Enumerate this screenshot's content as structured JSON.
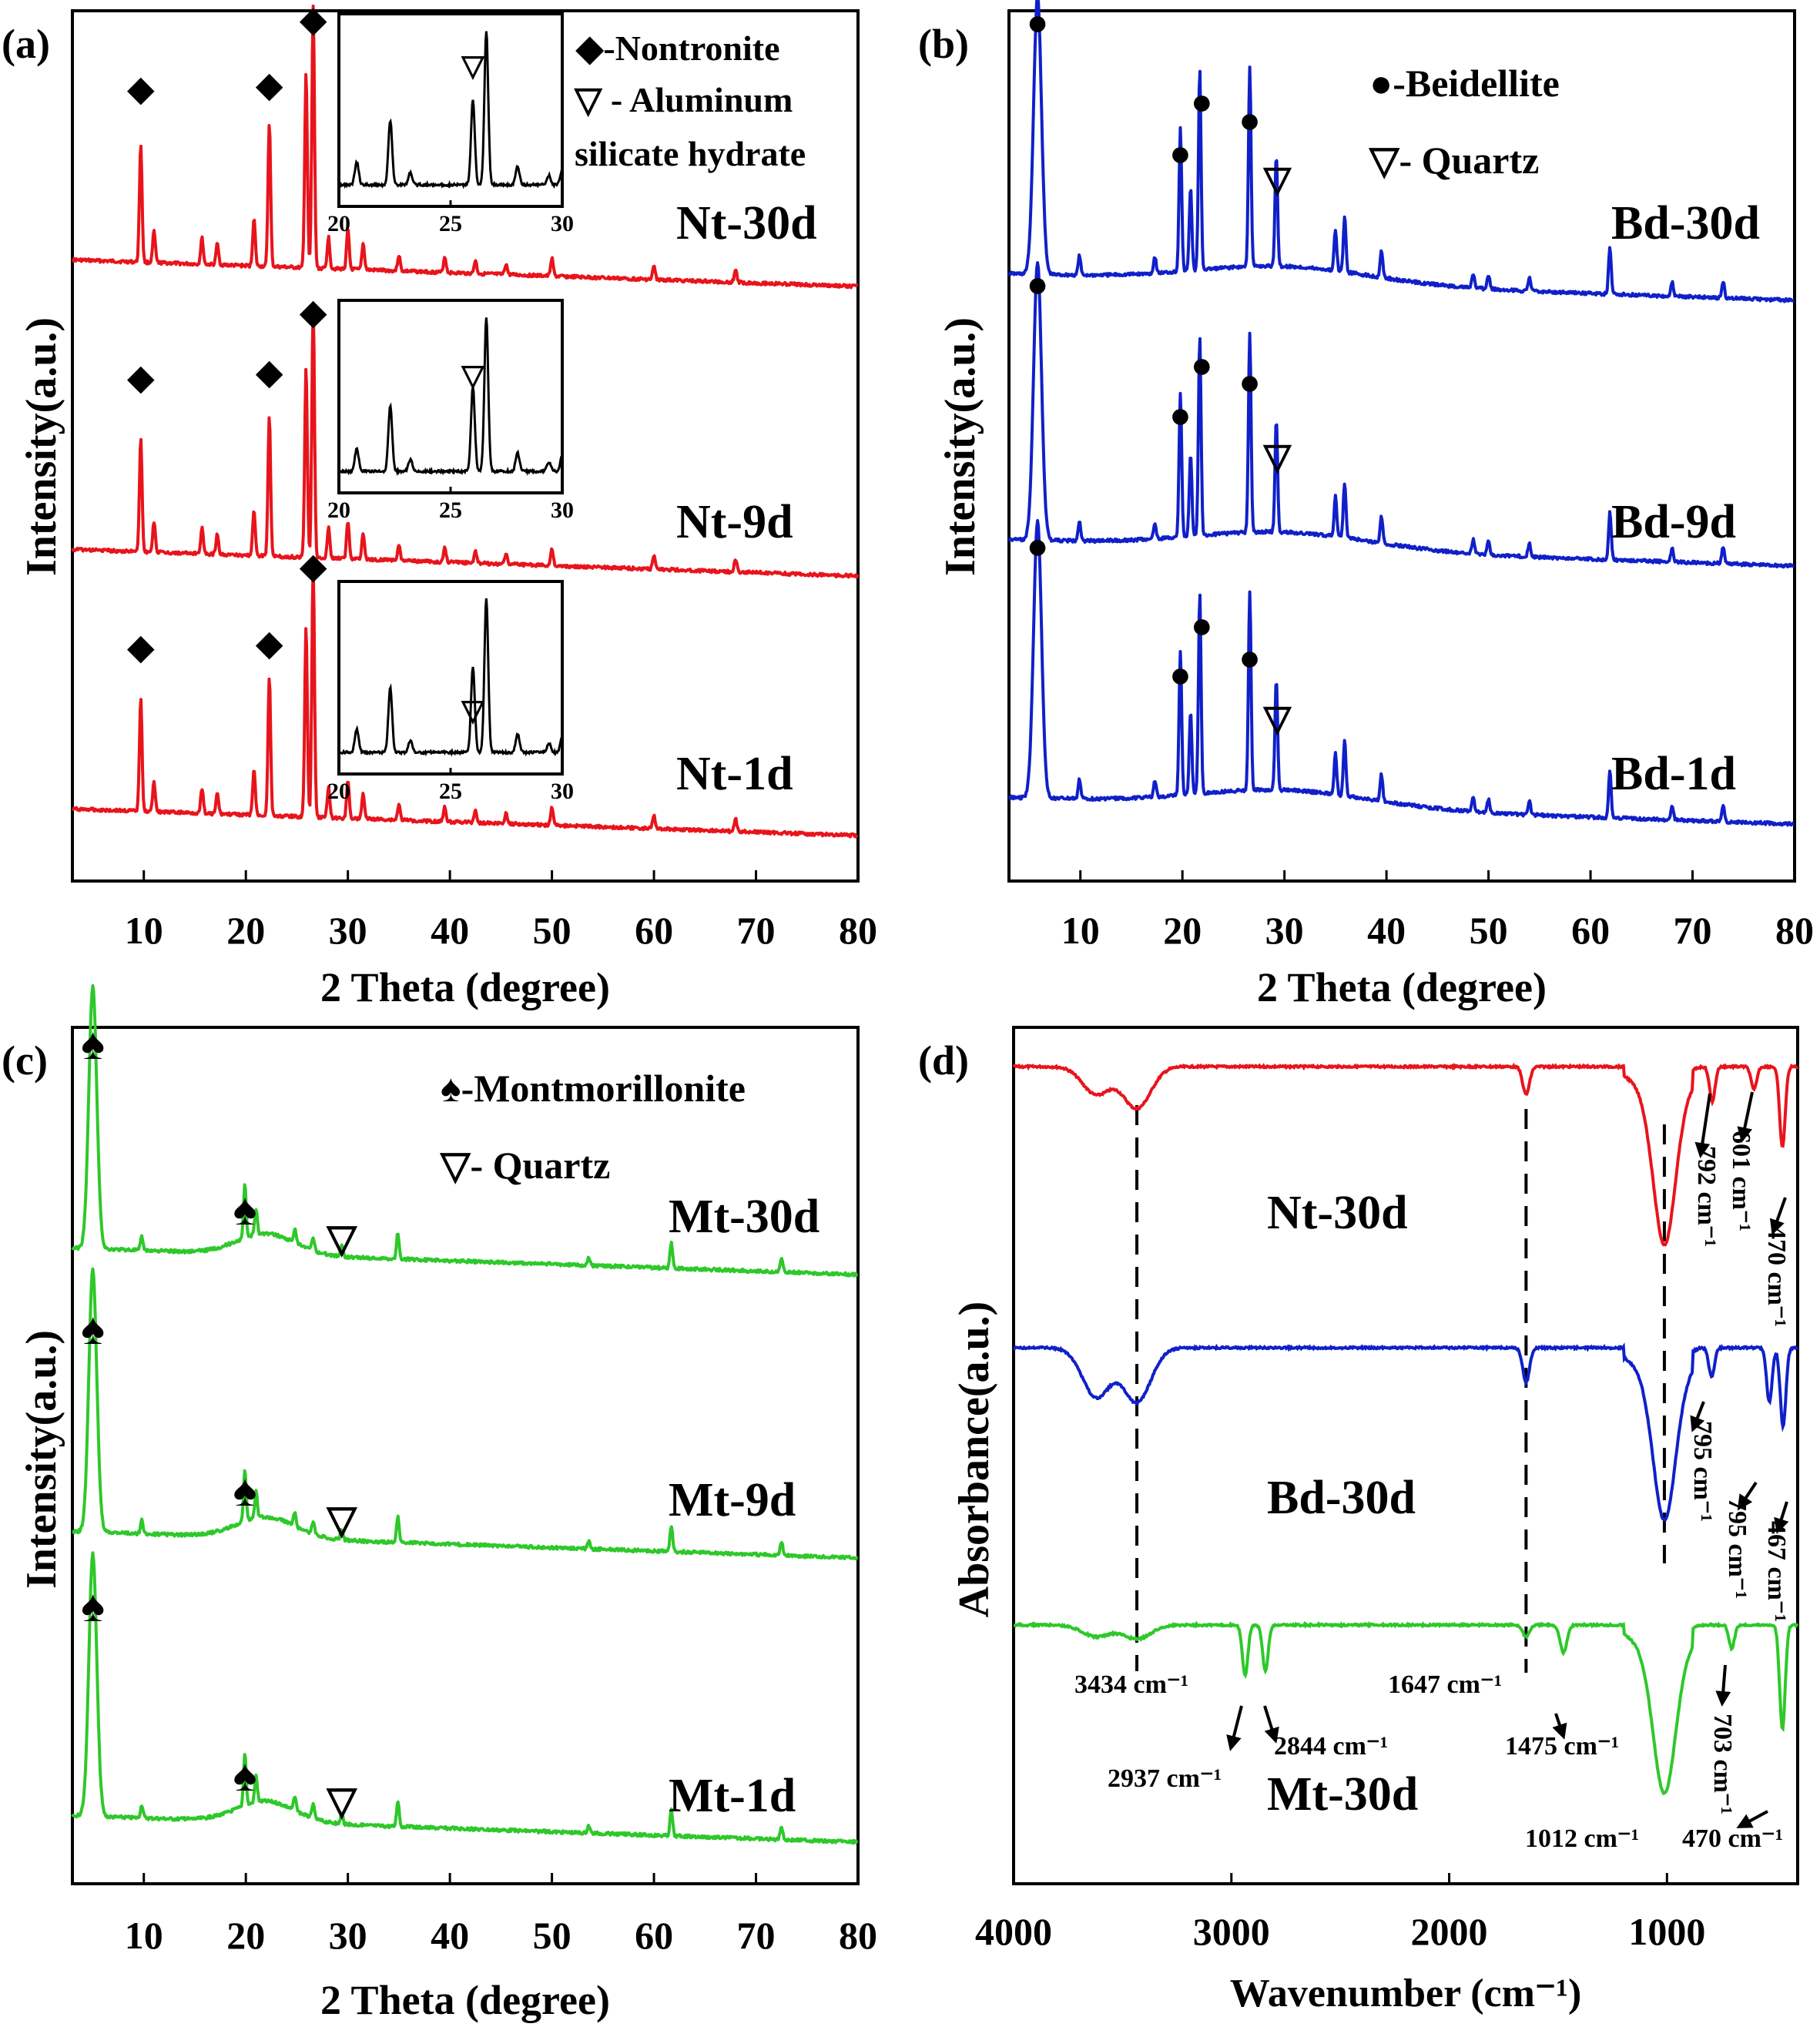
{
  "colors": {
    "nt": "#e8141c",
    "bd": "#1020c8",
    "mt": "#2ec82a",
    "inset": "#000000",
    "text": "#000000"
  },
  "panels": {
    "a": {
      "label": "(a)",
      "xlabel": "2 Theta (degree)",
      "ylabel": "Intensity(a.u.)",
      "xticks": [
        "10",
        "20",
        "30",
        "40",
        "50",
        "60",
        "70",
        "80"
      ],
      "legend": [
        "◆-Nontronite",
        "▽ - Aluminum",
        "silicate hydrate"
      ],
      "curves": [
        {
          "label": "Nt-30d"
        },
        {
          "label": "Nt-9d"
        },
        {
          "label": "Nt-1d"
        }
      ],
      "inset_ticks": [
        "20",
        "25",
        "30"
      ],
      "marker": "◆",
      "minor_marker": "▽"
    },
    "b": {
      "label": "(b)",
      "xlabel": "2 Theta (degree)",
      "ylabel": "Intensity(a.u.)",
      "xticks": [
        "10",
        "20",
        "30",
        "40",
        "50",
        "60",
        "70",
        "80"
      ],
      "legend": [
        "●-Beidellite",
        "▽- Quartz"
      ],
      "curves": [
        {
          "label": "Bd-30d"
        },
        {
          "label": "Bd-9d"
        },
        {
          "label": "Bd-1d"
        }
      ],
      "marker": "●",
      "minor_marker": "▽"
    },
    "c": {
      "label": "(c)",
      "xlabel": "2 Theta (degree)",
      "ylabel": "Intensity(a.u.)",
      "xticks": [
        "10",
        "20",
        "30",
        "40",
        "50",
        "60",
        "70",
        "80"
      ],
      "legend": [
        "♠-Montmorillonite",
        "▽- Quartz"
      ],
      "curves": [
        {
          "label": "Mt-30d"
        },
        {
          "label": "Mt-9d"
        },
        {
          "label": "Mt-1d"
        }
      ],
      "marker": "♠",
      "minor_marker": "▽"
    },
    "d": {
      "label": "(d)",
      "xlabel": "Wavenumber (cm⁻¹)",
      "ylabel": "Absorbance(a.u.)",
      "xticks": [
        "4000",
        "3000",
        "2000",
        "1000"
      ],
      "curves": [
        {
          "label": "Nt-30d"
        },
        {
          "label": "Bd-30d"
        },
        {
          "label": "Mt-30d"
        }
      ],
      "annotations": {
        "a3434": "3434 cm⁻¹",
        "a1647": "1647 cm⁻¹",
        "a2937": "2937 cm⁻¹",
        "a2844": "2844 cm⁻¹",
        "a1475": "1475 cm⁻¹",
        "a1012": "1012 cm⁻¹",
        "a470mt": "470 cm⁻¹",
        "a703": "703 cm⁻¹",
        "a792": "792 cm⁻¹",
        "a601": "601 cm⁻¹",
        "a470nt": "470 cm⁻¹",
        "a795a": "795 cm⁻¹",
        "a795b": "795 cm⁻¹",
        "a467": "467 cm⁻¹"
      }
    }
  },
  "chart_data": [
    {
      "type": "line",
      "panel": "a",
      "xlim": [
        3,
        80
      ],
      "xlabel": "2 Theta (degree)",
      "ylabel": "Intensity(a.u.)",
      "series": [
        {
          "name": "Nt-30d",
          "peaks": [
            [
              9.7,
              0.45
            ],
            [
              11,
              0.12
            ],
            [
              15.7,
              0.1
            ],
            [
              17.2,
              0.08
            ],
            [
              20.8,
              0.18
            ],
            [
              22.3,
              0.55
            ],
            [
              25.9,
              0.75
            ],
            [
              26.6,
              1.0
            ],
            [
              28.1,
              0.12
            ],
            [
              30,
              0.15
            ],
            [
              31.5,
              0.1
            ],
            [
              35,
              0.06
            ],
            [
              39.5,
              0.06
            ],
            [
              42.5,
              0.05
            ],
            [
              45.5,
              0.04
            ],
            [
              50,
              0.07
            ],
            [
              60,
              0.05
            ],
            [
              68,
              0.05
            ]
          ]
        },
        {
          "name": "Nt-9d",
          "peaks": [
            [
              9.7,
              0.45
            ],
            [
              11,
              0.12
            ],
            [
              15.7,
              0.1
            ],
            [
              17.2,
              0.08
            ],
            [
              20.8,
              0.18
            ],
            [
              22.3,
              0.55
            ],
            [
              25.9,
              0.75
            ],
            [
              26.6,
              1.0
            ],
            [
              28.1,
              0.12
            ],
            [
              30,
              0.15
            ],
            [
              31.5,
              0.1
            ],
            [
              35,
              0.06
            ],
            [
              39.5,
              0.06
            ],
            [
              42.5,
              0.05
            ],
            [
              45.5,
              0.04
            ],
            [
              50,
              0.07
            ],
            [
              60,
              0.05
            ],
            [
              68,
              0.05
            ]
          ]
        },
        {
          "name": "Nt-1d",
          "peaks": [
            [
              9.7,
              0.45
            ],
            [
              11,
              0.12
            ],
            [
              15.7,
              0.1
            ],
            [
              17.2,
              0.08
            ],
            [
              20.8,
              0.18
            ],
            [
              22.3,
              0.55
            ],
            [
              25.9,
              0.75
            ],
            [
              26.6,
              1.0
            ],
            [
              28.1,
              0.12
            ],
            [
              30,
              0.15
            ],
            [
              31.5,
              0.1
            ],
            [
              35,
              0.06
            ],
            [
              39.5,
              0.06
            ],
            [
              42.5,
              0.05
            ],
            [
              45.5,
              0.04
            ],
            [
              50,
              0.07
            ],
            [
              60,
              0.05
            ],
            [
              68,
              0.05
            ]
          ]
        }
      ]
    },
    {
      "type": "line",
      "panel": "b",
      "xlim": [
        3,
        80
      ],
      "xlabel": "2 Theta (degree)",
      "ylabel": "Intensity(a.u.)",
      "series": [
        {
          "name": "Bd-30d",
          "peaks": [
            [
              5.8,
              1.0
            ],
            [
              9.9,
              0.07
            ],
            [
              17.3,
              0.06
            ],
            [
              19.8,
              0.52
            ],
            [
              20.8,
              0.3
            ],
            [
              21.7,
              0.72
            ],
            [
              26.6,
              0.72
            ],
            [
              29.2,
              0.4
            ],
            [
              35,
              0.15
            ],
            [
              35.9,
              0.2
            ],
            [
              39.5,
              0.1
            ],
            [
              48.5,
              0.05
            ],
            [
              50,
              0.05
            ],
            [
              54,
              0.05
            ],
            [
              61.9,
              0.17
            ],
            [
              68,
              0.05
            ],
            [
              73,
              0.06
            ]
          ]
        },
        {
          "name": "Bd-9d",
          "peaks": [
            [
              5.8,
              1.0
            ],
            [
              9.9,
              0.07
            ],
            [
              17.3,
              0.06
            ],
            [
              19.8,
              0.52
            ],
            [
              20.8,
              0.3
            ],
            [
              21.7,
              0.72
            ],
            [
              26.6,
              0.72
            ],
            [
              29.2,
              0.4
            ],
            [
              35,
              0.15
            ],
            [
              35.9,
              0.2
            ],
            [
              39.5,
              0.1
            ],
            [
              48.5,
              0.05
            ],
            [
              50,
              0.05
            ],
            [
              54,
              0.05
            ],
            [
              61.9,
              0.17
            ],
            [
              68,
              0.05
            ],
            [
              73,
              0.06
            ]
          ]
        },
        {
          "name": "Bd-1d",
          "peaks": [
            [
              5.8,
              1.0
            ],
            [
              9.9,
              0.07
            ],
            [
              17.3,
              0.06
            ],
            [
              19.8,
              0.52
            ],
            [
              20.8,
              0.3
            ],
            [
              21.7,
              0.72
            ],
            [
              26.6,
              0.72
            ],
            [
              29.2,
              0.4
            ],
            [
              35,
              0.15
            ],
            [
              35.9,
              0.2
            ],
            [
              39.5,
              0.1
            ],
            [
              48.5,
              0.05
            ],
            [
              50,
              0.05
            ],
            [
              54,
              0.05
            ],
            [
              61.9,
              0.17
            ],
            [
              68,
              0.05
            ],
            [
              73,
              0.06
            ]
          ]
        }
      ]
    },
    {
      "type": "line",
      "panel": "c",
      "xlim": [
        3,
        80
      ],
      "xlabel": "2 Theta (degree)",
      "ylabel": "Intensity(a.u.)",
      "series": [
        {
          "name": "Mt-30d",
          "peaks": [
            [
              5,
              1.0
            ],
            [
              9.8,
              0.05
            ],
            [
              19.9,
              0.2
            ],
            [
              21,
              0.1
            ],
            [
              24.8,
              0.05
            ],
            [
              26.6,
              0.05
            ],
            [
              29.4,
              0.04
            ],
            [
              34.9,
              0.1
            ],
            [
              53.6,
              0.03
            ],
            [
              61.7,
              0.1
            ],
            [
              72.5,
              0.05
            ]
          ]
        },
        {
          "name": "Mt-9d",
          "peaks": [
            [
              5,
              1.0
            ],
            [
              9.8,
              0.05
            ],
            [
              19.9,
              0.2
            ],
            [
              21,
              0.1
            ],
            [
              24.8,
              0.05
            ],
            [
              26.6,
              0.05
            ],
            [
              29.4,
              0.04
            ],
            [
              34.9,
              0.1
            ],
            [
              53.6,
              0.03
            ],
            [
              61.7,
              0.1
            ],
            [
              72.5,
              0.05
            ]
          ]
        },
        {
          "name": "Mt-1d",
          "peaks": [
            [
              5,
              1.0
            ],
            [
              9.8,
              0.05
            ],
            [
              19.9,
              0.2
            ],
            [
              21,
              0.1
            ],
            [
              24.8,
              0.05
            ],
            [
              26.6,
              0.05
            ],
            [
              29.4,
              0.04
            ],
            [
              34.9,
              0.1
            ],
            [
              53.6,
              0.03
            ],
            [
              61.7,
              0.1
            ],
            [
              72.5,
              0.05
            ]
          ]
        }
      ]
    },
    {
      "type": "line",
      "panel": "d",
      "xlim": [
        4000,
        400
      ],
      "xlabel": "Wavenumber (cm⁻¹)",
      "ylabel": "Absorbance(a.u.)",
      "series": [
        {
          "name": "Nt-30d",
          "bands": [
            [
              3620,
              0.12
            ],
            [
              3434,
              0.18
            ],
            [
              1647,
              0.12
            ],
            [
              1012,
              0.62
            ],
            [
              792,
              0.15
            ],
            [
              601,
              0.1
            ],
            [
              470,
              0.35
            ]
          ]
        },
        {
          "name": "Bd-30d",
          "bands": [
            [
              3620,
              0.2
            ],
            [
              3434,
              0.22
            ],
            [
              1647,
              0.14
            ],
            [
              1012,
              0.55
            ],
            [
              795,
              0.12
            ],
            [
              530,
              0.22
            ],
            [
              467,
              0.32
            ]
          ]
        },
        {
          "name": "Mt-30d",
          "bands": [
            [
              3620,
              0.05
            ],
            [
              3434,
              0.06
            ],
            [
              2937,
              0.22
            ],
            [
              2844,
              0.2
            ],
            [
              1647,
              0.05
            ],
            [
              1475,
              0.12
            ],
            [
              1012,
              0.58
            ],
            [
              703,
              0.1
            ],
            [
              470,
              0.45
            ]
          ]
        }
      ]
    }
  ]
}
